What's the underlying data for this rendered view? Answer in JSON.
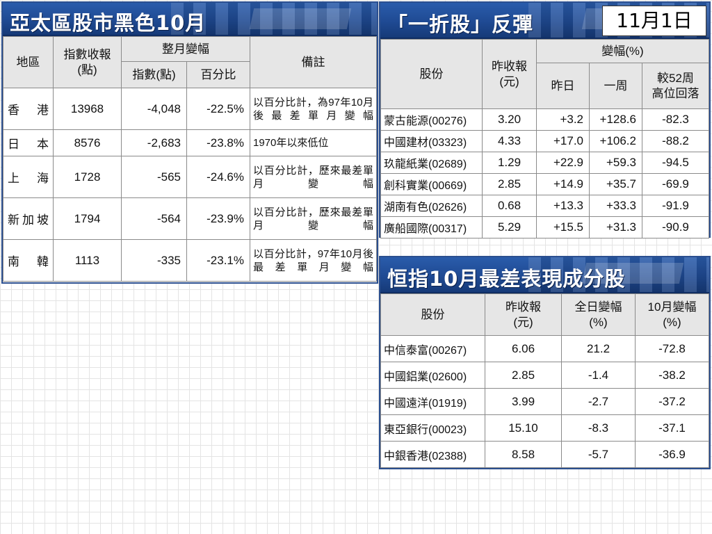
{
  "date": "11月1日",
  "panel1": {
    "title": "亞太區股市黑色10月",
    "headers": {
      "region": "地區",
      "index_close": "指數收報\n(點)",
      "month_change": "整月變幅",
      "points": "指數(點)",
      "percent": "百分比",
      "remarks": "備註"
    },
    "rows": [
      {
        "region": "香港",
        "close": "13968",
        "points": "-4,048",
        "percent": "-22.5%",
        "note": "以百分比計，為97年10月後最差單月變幅"
      },
      {
        "region": "日本",
        "close": "8576",
        "points": "-2,683",
        "percent": "-23.8%",
        "note": "1970年以來低位"
      },
      {
        "region": "上海",
        "close": "1728",
        "points": "-565",
        "percent": "-24.6%",
        "note": "以百分比計，歷來最差單月變幅"
      },
      {
        "region": "新加坡",
        "close": "1794",
        "points": "-564",
        "percent": "-23.9%",
        "note": "以百分比計，歷來最差單月變幅"
      },
      {
        "region": "南韓",
        "close": "1113",
        "points": "-335",
        "percent": "-23.1%",
        "note": "以百分比計，97年10月後最差單月變幅"
      }
    ]
  },
  "panel2": {
    "title": "「一折股」反彈",
    "headers": {
      "stock": "股份",
      "prev_close": "昨收報\n(元)",
      "change": "變幅(%)",
      "yesterday": "昨日",
      "week": "一周",
      "from_high": "較52周\n高位回落"
    },
    "rows": [
      {
        "stock": "蒙古能源(00276)",
        "close": "3.20",
        "yesterday": "+3.2",
        "week": "+128.6",
        "from_high": "-82.3"
      },
      {
        "stock": "中國建材(03323)",
        "close": "4.33",
        "yesterday": "+17.0",
        "week": "+106.2",
        "from_high": "-88.2"
      },
      {
        "stock": "玖龍紙業(02689)",
        "close": "1.29",
        "yesterday": "+22.9",
        "week": "+59.3",
        "from_high": "-94.5"
      },
      {
        "stock": "創科實業(00669)",
        "close": "2.85",
        "yesterday": "+14.9",
        "week": "+35.7",
        "from_high": "-69.9"
      },
      {
        "stock": "湖南有色(02626)",
        "close": "0.68",
        "yesterday": "+13.3",
        "week": "+33.3",
        "from_high": "-91.9"
      },
      {
        "stock": "廣船國際(00317)",
        "close": "5.29",
        "yesterday": "+15.5",
        "week": "+31.3",
        "from_high": "-90.9"
      }
    ]
  },
  "panel3": {
    "title": "恒指10月最差表現成分股",
    "headers": {
      "stock": "股份",
      "prev_close": "昨收報\n(元)",
      "day_change": "全日變幅\n(%)",
      "oct_change": "10月變幅\n(%)"
    },
    "rows": [
      {
        "stock": "中信泰富(00267)",
        "close": "6.06",
        "day": "21.2",
        "oct": "-72.8"
      },
      {
        "stock": "中國鋁業(02600)",
        "close": "2.85",
        "day": "-1.4",
        "oct": "-38.2"
      },
      {
        "stock": "中國遠洋(01919)",
        "close": "3.99",
        "day": "-2.7",
        "oct": "-37.2"
      },
      {
        "stock": "東亞銀行(00023)",
        "close": "15.10",
        "day": "-8.3",
        "oct": "-37.1"
      },
      {
        "stock": "中銀香港(02388)",
        "close": "8.58",
        "day": "-5.7",
        "oct": "-36.9"
      }
    ]
  }
}
